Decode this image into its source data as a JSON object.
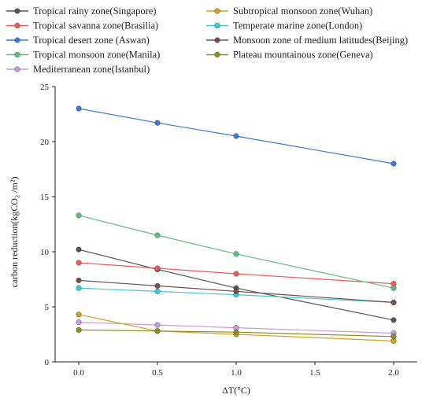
{
  "chart_data": {
    "type": "line",
    "title": "",
    "xlabel": "ΔT(°C)",
    "ylabel": "carbon reduction(kgCO₂ /m²)",
    "x": [
      0.0,
      0.5,
      1.0,
      2.0
    ],
    "xlim": [
      -0.15,
      2.15
    ],
    "ylim": [
      0,
      25
    ],
    "xticks": [
      "0.0",
      "0.5",
      "1.0",
      "1.5",
      "2.0"
    ],
    "yticks": [
      "0",
      "5",
      "10",
      "15",
      "20",
      "25"
    ],
    "grid": false,
    "legend_position": "top",
    "series": [
      {
        "name": "Tropical rainy zone(Singapore)",
        "color": "#555555",
        "values": [
          10.2,
          8.4,
          6.7,
          3.8
        ]
      },
      {
        "name": "Tropical savanna zone(Brasilia)",
        "color": "#ee5a5a",
        "values": [
          9.0,
          8.5,
          8.0,
          7.1
        ]
      },
      {
        "name": "Tropical desert zone (Aswan)",
        "color": "#3a7bd5",
        "values": [
          23.0,
          21.7,
          20.5,
          18.0
        ]
      },
      {
        "name": "Tropical monsoon zone(Manila)",
        "color": "#5cbf7e",
        "values": [
          13.3,
          11.5,
          9.8,
          6.7
        ]
      },
      {
        "name": "Mediterranean zone(Istanbul)",
        "color": "#c59be3",
        "values": [
          3.6,
          3.35,
          3.1,
          2.6
        ]
      },
      {
        "name": "Subtropical monsoon zone(Wuhan)",
        "color": "#d4a017",
        "values": [
          4.3,
          2.8,
          2.5,
          1.9
        ]
      },
      {
        "name": "Temperate marine zone(London)",
        "color": "#3ecad2",
        "values": [
          6.7,
          6.4,
          6.1,
          5.4
        ]
      },
      {
        "name": "Monsoon zone of medium latitudes(Beijing)",
        "color": "#7a4e4e",
        "values": [
          7.4,
          6.9,
          6.4,
          5.4
        ]
      },
      {
        "name": "Plateau mountainous zone(Geneva)",
        "color": "#8e8e1e",
        "values": [
          2.9,
          2.8,
          2.7,
          2.3
        ]
      }
    ]
  }
}
